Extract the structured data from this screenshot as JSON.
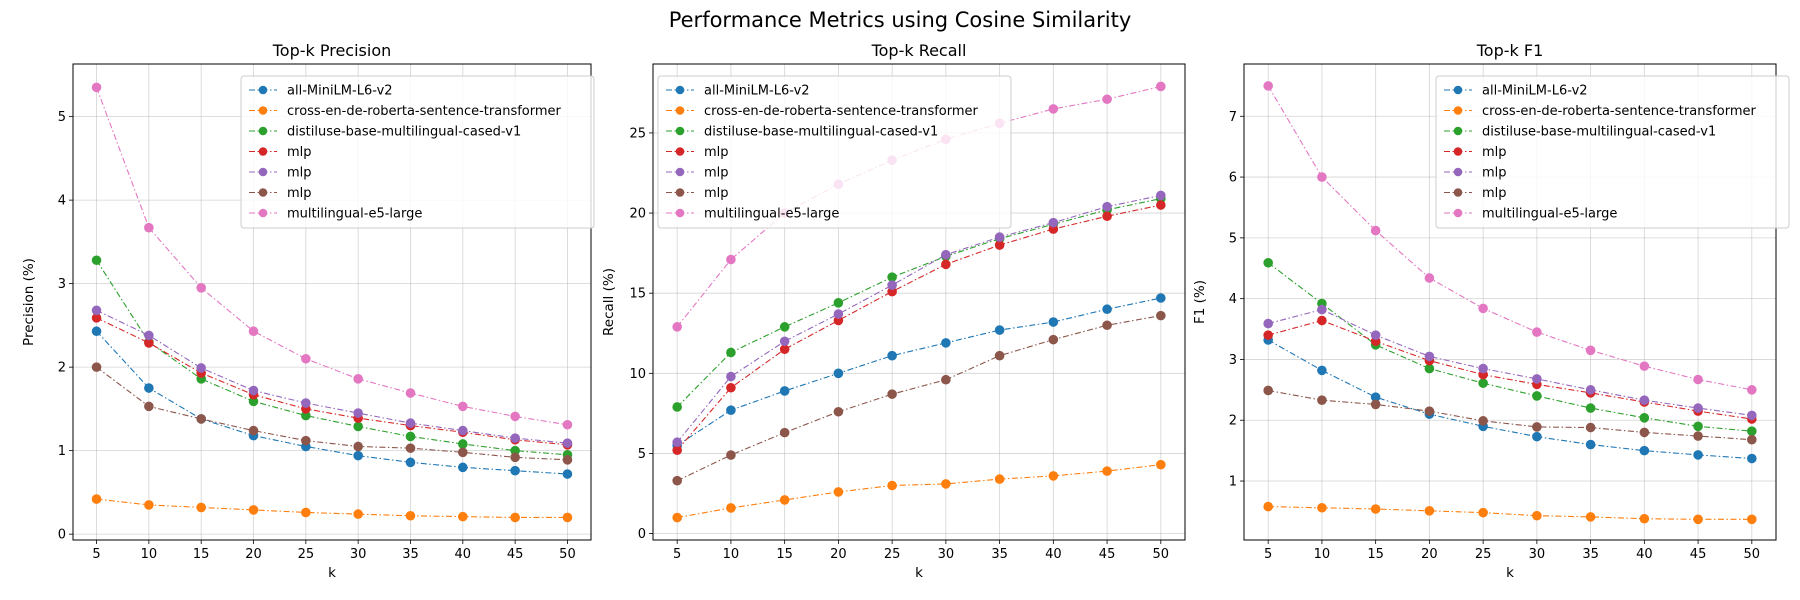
{
  "figure": {
    "title": "Performance Metrics using Cosine Similarity"
  },
  "chart_data": [
    {
      "type": "line",
      "title": "Top-k Precision",
      "xlabel": "k",
      "ylabel": "Precision (%)",
      "x": [
        5,
        10,
        15,
        20,
        25,
        30,
        35,
        40,
        45,
        50
      ],
      "xlim": [
        2.75,
        52.25
      ],
      "ylim": [
        -0.07,
        5.63
      ],
      "yticks": [
        0,
        1,
        2,
        3,
        4,
        5
      ],
      "grid": true,
      "legend_position": "upper-right",
      "series": [
        {
          "name": "all-MiniLM-L6-v2",
          "color": "#1f77b4",
          "values": [
            2.43,
            1.75,
            1.38,
            1.18,
            1.05,
            0.94,
            0.86,
            0.8,
            0.76,
            0.72
          ]
        },
        {
          "name": "cross-en-de-roberta-sentence-transformer",
          "color": "#ff7f0e",
          "values": [
            0.42,
            0.35,
            0.32,
            0.29,
            0.26,
            0.24,
            0.22,
            0.21,
            0.2,
            0.2
          ]
        },
        {
          "name": "distiluse-base-multilingual-cased-v1",
          "color": "#2ca02c",
          "values": [
            3.28,
            2.3,
            1.86,
            1.59,
            1.42,
            1.29,
            1.17,
            1.08,
            1.0,
            0.95
          ]
        },
        {
          "name": "mlp",
          "color": "#d62728",
          "values": [
            2.59,
            2.29,
            1.93,
            1.67,
            1.5,
            1.39,
            1.3,
            1.22,
            1.13,
            1.07
          ]
        },
        {
          "name": "mlp",
          "color": "#9467bd",
          "values": [
            2.68,
            2.38,
            1.99,
            1.72,
            1.57,
            1.45,
            1.33,
            1.24,
            1.15,
            1.09
          ]
        },
        {
          "name": "mlp",
          "color": "#8c564b",
          "values": [
            2.0,
            1.53,
            1.38,
            1.24,
            1.12,
            1.05,
            1.03,
            0.98,
            0.92,
            0.89
          ]
        },
        {
          "name": "multilingual-e5-large",
          "color": "#e377c2",
          "values": [
            5.35,
            3.67,
            2.95,
            2.43,
            2.1,
            1.86,
            1.69,
            1.53,
            1.41,
            1.31
          ]
        }
      ]
    },
    {
      "type": "line",
      "title": "Top-k Recall",
      "xlabel": "k",
      "ylabel": "Recall (%)",
      "x": [
        5,
        10,
        15,
        20,
        25,
        30,
        35,
        40,
        45,
        50
      ],
      "xlim": [
        2.75,
        52.25
      ],
      "ylim": [
        -0.4,
        29.3
      ],
      "yticks": [
        0,
        5,
        10,
        15,
        20,
        25
      ],
      "grid": true,
      "legend_position": "upper-left",
      "series": [
        {
          "name": "all-MiniLM-L6-v2",
          "color": "#1f77b4",
          "values": [
            5.5,
            7.7,
            8.9,
            10.0,
            11.1,
            11.9,
            12.7,
            13.2,
            14.0,
            14.7
          ]
        },
        {
          "name": "cross-en-de-roberta-sentence-transformer",
          "color": "#ff7f0e",
          "values": [
            1.0,
            1.6,
            2.1,
            2.6,
            3.0,
            3.1,
            3.4,
            3.6,
            3.9,
            4.3
          ]
        },
        {
          "name": "distiluse-base-multilingual-cased-v1",
          "color": "#2ca02c",
          "values": [
            7.9,
            11.3,
            12.9,
            14.4,
            16.0,
            17.3,
            18.4,
            19.3,
            20.2,
            20.9
          ]
        },
        {
          "name": "mlp",
          "color": "#d62728",
          "values": [
            5.2,
            9.1,
            11.5,
            13.3,
            15.1,
            16.8,
            18.0,
            19.0,
            19.8,
            20.5
          ]
        },
        {
          "name": "mlp",
          "color": "#9467bd",
          "values": [
            5.7,
            9.8,
            12.0,
            13.7,
            15.5,
            17.4,
            18.5,
            19.4,
            20.4,
            21.1
          ]
        },
        {
          "name": "mlp",
          "color": "#8c564b",
          "values": [
            3.3,
            4.9,
            6.3,
            7.6,
            8.7,
            9.6,
            11.1,
            12.1,
            13.0,
            13.6
          ]
        },
        {
          "name": "multilingual-e5-large",
          "color": "#e377c2",
          "values": [
            12.9,
            17.1,
            20.0,
            21.8,
            23.3,
            24.6,
            25.6,
            26.5,
            27.1,
            27.9
          ]
        }
      ]
    },
    {
      "type": "line",
      "title": "Top-k F1",
      "xlabel": "k",
      "ylabel": "F1 (%)",
      "x": [
        5,
        10,
        15,
        20,
        25,
        30,
        35,
        40,
        45,
        50
      ],
      "xlim": [
        2.75,
        52.25
      ],
      "ylim": [
        0.03,
        7.86
      ],
      "yticks": [
        1,
        2,
        3,
        4,
        5,
        6,
        7
      ],
      "grid": true,
      "legend_position": "upper-right",
      "series": [
        {
          "name": "all-MiniLM-L6-v2",
          "color": "#1f77b4",
          "values": [
            3.32,
            2.82,
            2.38,
            2.1,
            1.9,
            1.73,
            1.6,
            1.5,
            1.43,
            1.37
          ]
        },
        {
          "name": "cross-en-de-roberta-sentence-transformer",
          "color": "#ff7f0e",
          "values": [
            0.58,
            0.56,
            0.54,
            0.51,
            0.48,
            0.43,
            0.41,
            0.38,
            0.37,
            0.37
          ]
        },
        {
          "name": "distiluse-base-multilingual-cased-v1",
          "color": "#2ca02c",
          "values": [
            4.59,
            3.92,
            3.24,
            2.85,
            2.61,
            2.4,
            2.2,
            2.04,
            1.9,
            1.82
          ]
        },
        {
          "name": "mlp",
          "color": "#d62728",
          "values": [
            3.4,
            3.64,
            3.3,
            2.98,
            2.75,
            2.59,
            2.45,
            2.3,
            2.15,
            2.02
          ]
        },
        {
          "name": "mlp",
          "color": "#9467bd",
          "values": [
            3.59,
            3.82,
            3.4,
            3.05,
            2.85,
            2.68,
            2.5,
            2.33,
            2.2,
            2.08
          ]
        },
        {
          "name": "mlp",
          "color": "#8c564b",
          "values": [
            2.49,
            2.33,
            2.26,
            2.15,
            1.99,
            1.89,
            1.88,
            1.8,
            1.74,
            1.68
          ]
        },
        {
          "name": "multilingual-e5-large",
          "color": "#e377c2",
          "values": [
            7.5,
            6.0,
            5.12,
            4.34,
            3.84,
            3.45,
            3.15,
            2.89,
            2.67,
            2.5
          ]
        }
      ]
    }
  ]
}
